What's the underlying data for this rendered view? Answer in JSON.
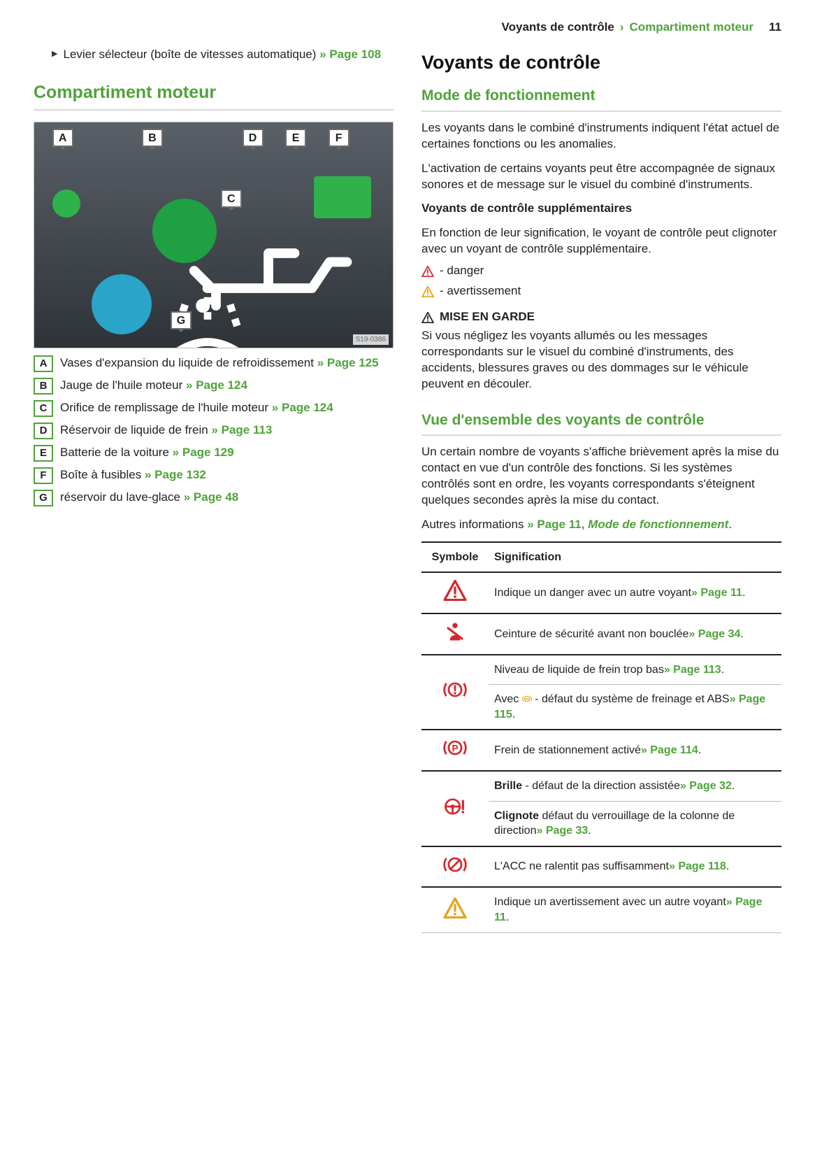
{
  "header": {
    "crumb1": "Voyants de contrôle",
    "crumb2": "Compartiment moteur",
    "page": "11"
  },
  "left": {
    "selector_lever": {
      "text": "Levier sélecteur (boîte de vitesses automatique)",
      "link": "Page 108"
    },
    "h2": "Compartiment moteur",
    "fig_id": "S19-0386",
    "tags": [
      "A",
      "B",
      "C",
      "D",
      "E",
      "F",
      "G"
    ],
    "legend": [
      {
        "k": "A",
        "t": "Vases d'expansion du liquide de refroidissement",
        "l": "Page 125"
      },
      {
        "k": "B",
        "t": "Jauge de l'huile moteur",
        "l": "Page 124"
      },
      {
        "k": "C",
        "t": "Orifice de remplissage de l'huile moteur",
        "l": "Page 124"
      },
      {
        "k": "D",
        "t": "Réservoir de liquide de frein",
        "l": "Page 113"
      },
      {
        "k": "E",
        "t": "Batterie de la voiture",
        "l": "Page 129"
      },
      {
        "k": "F",
        "t": "Boîte à fusibles",
        "l": "Page 132"
      },
      {
        "k": "G",
        "t": "réservoir du lave-glace",
        "l": "Page 48"
      }
    ]
  },
  "right": {
    "h2": "Voyants de contrôle",
    "mode_h3": "Mode de fonctionnement",
    "p1": "Les voyants dans le combiné d'instruments indiquent l'état actuel de certaines fonctions ou les anomalies.",
    "p2": "L'activation de certains voyants peut être accompagnée de signaux sonores et de message sur le visuel du combiné d'instruments.",
    "supp_h": "Voyants de contrôle supplémentaires",
    "supp_p": "En fonction de leur signification, le voyant de contrôle peut clignoter avec un voyant de contrôle supplémentaire.",
    "danger": "- danger",
    "avert": "- avertissement",
    "meg_title": "MISE EN GARDE",
    "meg_body": "Si vous négligez les voyants allumés ou les messages correspondants sur le visuel du combiné d'instruments, des accidents, blessures graves ou des dommages sur le véhicule peuvent en découler.",
    "overview_h3": "Vue d'ensemble des voyants de contrôle",
    "overview_p": "Un certain nombre de voyants s'affiche brièvement après la mise du contact en vue d'un contrôle des fonctions. Si les systèmes contrôlés sont en ordre, les voyants correspondants s'éteignent quelques secondes après la mise du contact.",
    "autres_pre": "Autres informations",
    "autres_link": "Page 11, ",
    "autres_em": "Mode de fonctionnement",
    "table": {
      "th1": "Symbole",
      "th2": "Signification",
      "rows": [
        {
          "icon": "tri-red",
          "t_pre": "Indique un danger avec un autre voyant",
          "l": "Page 11",
          "t_post": ".",
          "group_start": true
        },
        {
          "icon": "seatbelt",
          "t_pre": "Ceinture de sécurité avant non bouclée",
          "l": "Page 34",
          "t_post": ".",
          "group_start": true
        },
        {
          "icon": "brake-excl",
          "t_pre": "Niveau de liquide de frein trop bas",
          "l": "Page 113",
          "t_post": ".",
          "group_start": true,
          "rowspan": 2
        },
        {
          "icon": "",
          "t_pre_html": "Avec <abs> - défaut du système de freinage et ABS",
          "l": "Page 115",
          "t_post": "."
        },
        {
          "icon": "parking",
          "t_pre": "Frein de stationnement activé",
          "l": "Page 114",
          "t_post": ".",
          "group_start": true
        },
        {
          "icon": "steering",
          "t_pre_html": "<b>Brille</b> - défaut de la direction assistée",
          "l": "Page 32",
          "t_post": ".",
          "group_start": true,
          "rowspan": 2
        },
        {
          "icon": "",
          "t_pre_html": "<b>Clignote</b> défaut du verrouillage de la colonne de direction",
          "l": "Page 33",
          "t_post": "."
        },
        {
          "icon": "acc",
          "t_pre": "L'ACC ne ralentit pas suffisamment",
          "l": "Page 118",
          "t_post": ".",
          "group_start": true
        },
        {
          "icon": "tri-amber",
          "t_pre": "Indique un avertissement avec un autre voyant",
          "l": "Page 11",
          "t_post": ".",
          "group_start": true
        }
      ]
    }
  },
  "colors": {
    "green": "#4fa33a",
    "red": "#d4282f",
    "amber": "#e6a316"
  }
}
